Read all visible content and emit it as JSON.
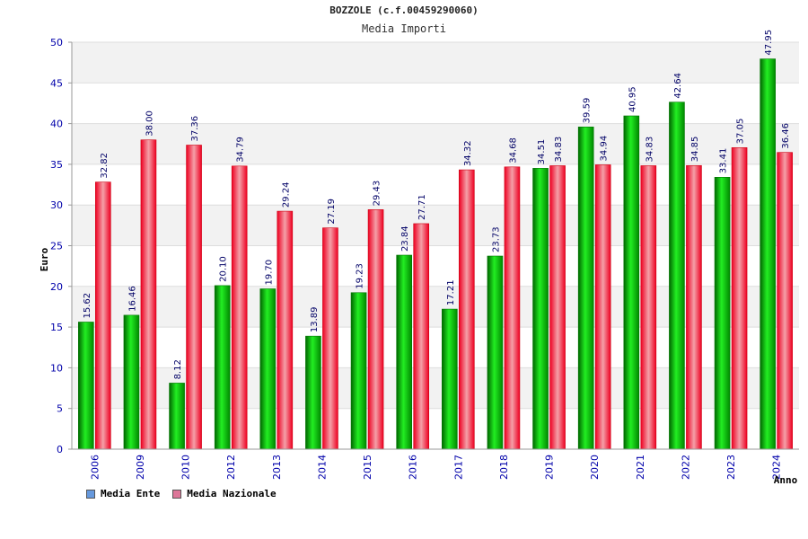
{
  "chart_data": {
    "type": "bar",
    "title": "BOZZOLE (c.f.00459290060)",
    "subtitle": "Media Importi",
    "xlabel": "Anno",
    "ylabel": "Euro",
    "ylim": [
      0,
      50
    ],
    "yticks": [
      "0",
      "5",
      "10",
      "15",
      "20",
      "25",
      "30",
      "35",
      "40",
      "45",
      "50"
    ],
    "categories": [
      "2006",
      "2009",
      "2010",
      "2012",
      "2013",
      "2014",
      "2015",
      "2016",
      "2017",
      "2018",
      "2019",
      "2020",
      "2021",
      "2022",
      "2023",
      "2024"
    ],
    "series": [
      {
        "name": "Media Ente",
        "color": "#00bb00",
        "values": [
          15.62,
          16.46,
          8.12,
          20.1,
          19.7,
          13.89,
          19.23,
          23.84,
          17.21,
          23.73,
          34.51,
          39.59,
          40.95,
          42.64,
          33.41,
          47.95
        ],
        "labels": [
          "15.62",
          "16.46",
          "8.12",
          "20.10",
          "19.70",
          "13.89",
          "19.23",
          "23.84",
          "17.21",
          "23.73",
          "34.51",
          "39.59",
          "40.95",
          "42.64",
          "33.41",
          "47.95"
        ]
      },
      {
        "name": "Media Nazionale",
        "color": "#ee2233",
        "values": [
          32.82,
          38.0,
          37.36,
          34.79,
          29.24,
          27.19,
          29.43,
          27.71,
          34.32,
          34.68,
          34.83,
          34.94,
          34.83,
          34.85,
          37.05,
          36.46
        ],
        "labels": [
          "32.82",
          "38.00",
          "37.36",
          "34.79",
          "29.24",
          "27.19",
          "29.43",
          "27.71",
          "34.32",
          "34.68",
          "34.83",
          "34.94",
          "34.83",
          "34.85",
          "37.05",
          "36.46"
        ]
      }
    ],
    "grid": true,
    "legend": "bottom-left"
  },
  "legend": {
    "items": [
      {
        "label": "Media Ente",
        "color": "#6699dd"
      },
      {
        "label": "Media Nazionale",
        "color": "#dd7799"
      }
    ]
  }
}
